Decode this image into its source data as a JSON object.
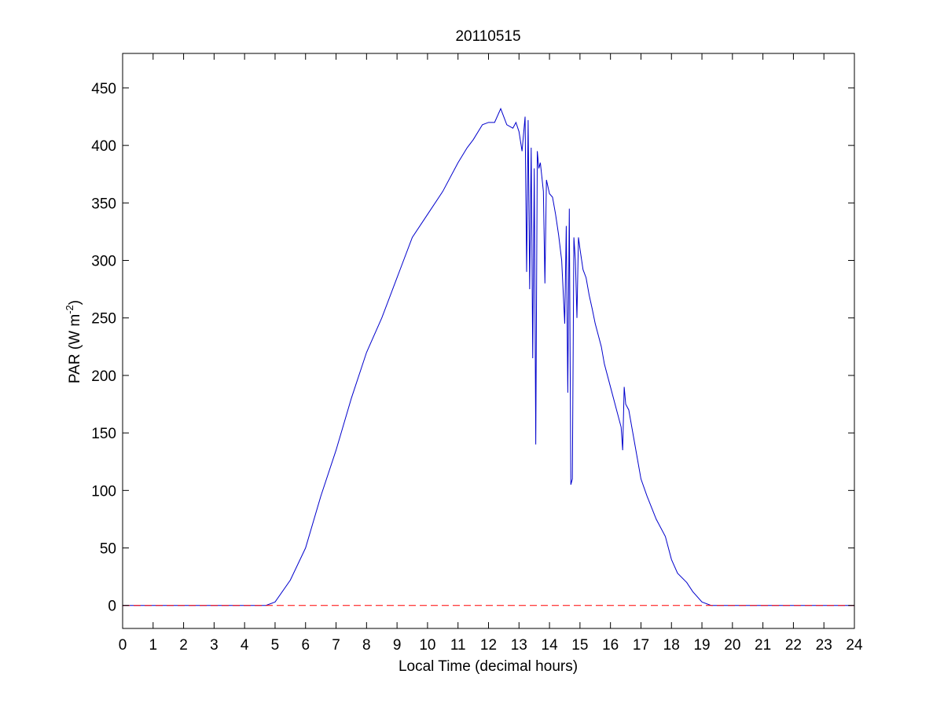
{
  "chart_data": {
    "type": "line",
    "title": "20110515",
    "xlabel": "Local Time (decimal hours)",
    "ylabel": {
      "main": "PAR (W m",
      "superscript": "-2",
      "close": ")"
    },
    "xlim": [
      0,
      24
    ],
    "ylim": [
      -20,
      480
    ],
    "xticks": [
      "0",
      "1",
      "2",
      "3",
      "4",
      "5",
      "6",
      "7",
      "8",
      "9",
      "10",
      "11",
      "12",
      "13",
      "14",
      "15",
      "16",
      "17",
      "18",
      "19",
      "20",
      "21",
      "22",
      "23",
      "24"
    ],
    "yticks": [
      "0",
      "50",
      "100",
      "150",
      "200",
      "250",
      "300",
      "350",
      "400",
      "450"
    ],
    "grid": false,
    "legend": "none",
    "series": [
      {
        "color": "#0000cc",
        "style": "solid",
        "x": [
          0,
          4.7,
          5.0,
          5.5,
          6.0,
          6.5,
          7.0,
          7.5,
          8.0,
          8.5,
          9.0,
          9.5,
          10.0,
          10.5,
          11.0,
          11.3,
          11.5,
          11.8,
          12.0,
          12.2,
          12.4,
          12.6,
          12.8,
          12.9,
          13.0,
          13.1,
          13.2,
          13.25,
          13.3,
          13.35,
          13.4,
          13.45,
          13.5,
          13.55,
          13.6,
          13.65,
          13.7,
          13.8,
          13.85,
          13.9,
          14.0,
          14.1,
          14.2,
          14.3,
          14.4,
          14.5,
          14.55,
          14.6,
          14.65,
          14.7,
          14.75,
          14.8,
          14.85,
          14.9,
          14.95,
          15.0,
          15.1,
          15.2,
          15.3,
          15.4,
          15.5,
          15.6,
          15.7,
          15.8,
          16.0,
          16.2,
          16.35,
          16.4,
          16.45,
          16.5,
          16.6,
          16.8,
          17.0,
          17.2,
          17.5,
          17.8,
          18.0,
          18.2,
          18.5,
          18.7,
          19.0,
          19.3,
          19.5,
          20.0,
          24.0
        ],
        "values": [
          0,
          0,
          3,
          22,
          50,
          95,
          135,
          180,
          220,
          250,
          285,
          320,
          340,
          360,
          385,
          398,
          405,
          418,
          420,
          420,
          432,
          418,
          415,
          420,
          412,
          395,
          425,
          290,
          422,
          275,
          398,
          215,
          380,
          140,
          395,
          380,
          385,
          360,
          280,
          370,
          358,
          355,
          340,
          322,
          300,
          245,
          330,
          185,
          345,
          105,
          110,
          320,
          300,
          250,
          320,
          310,
          292,
          285,
          270,
          258,
          245,
          235,
          225,
          210,
          190,
          170,
          155,
          135,
          190,
          175,
          170,
          140,
          110,
          95,
          75,
          60,
          40,
          28,
          20,
          12,
          3,
          0,
          0,
          0,
          0
        ]
      },
      {
        "color": "#ff0000",
        "style": "dashed",
        "x": [
          0,
          24
        ],
        "values": [
          0,
          0
        ]
      }
    ]
  }
}
